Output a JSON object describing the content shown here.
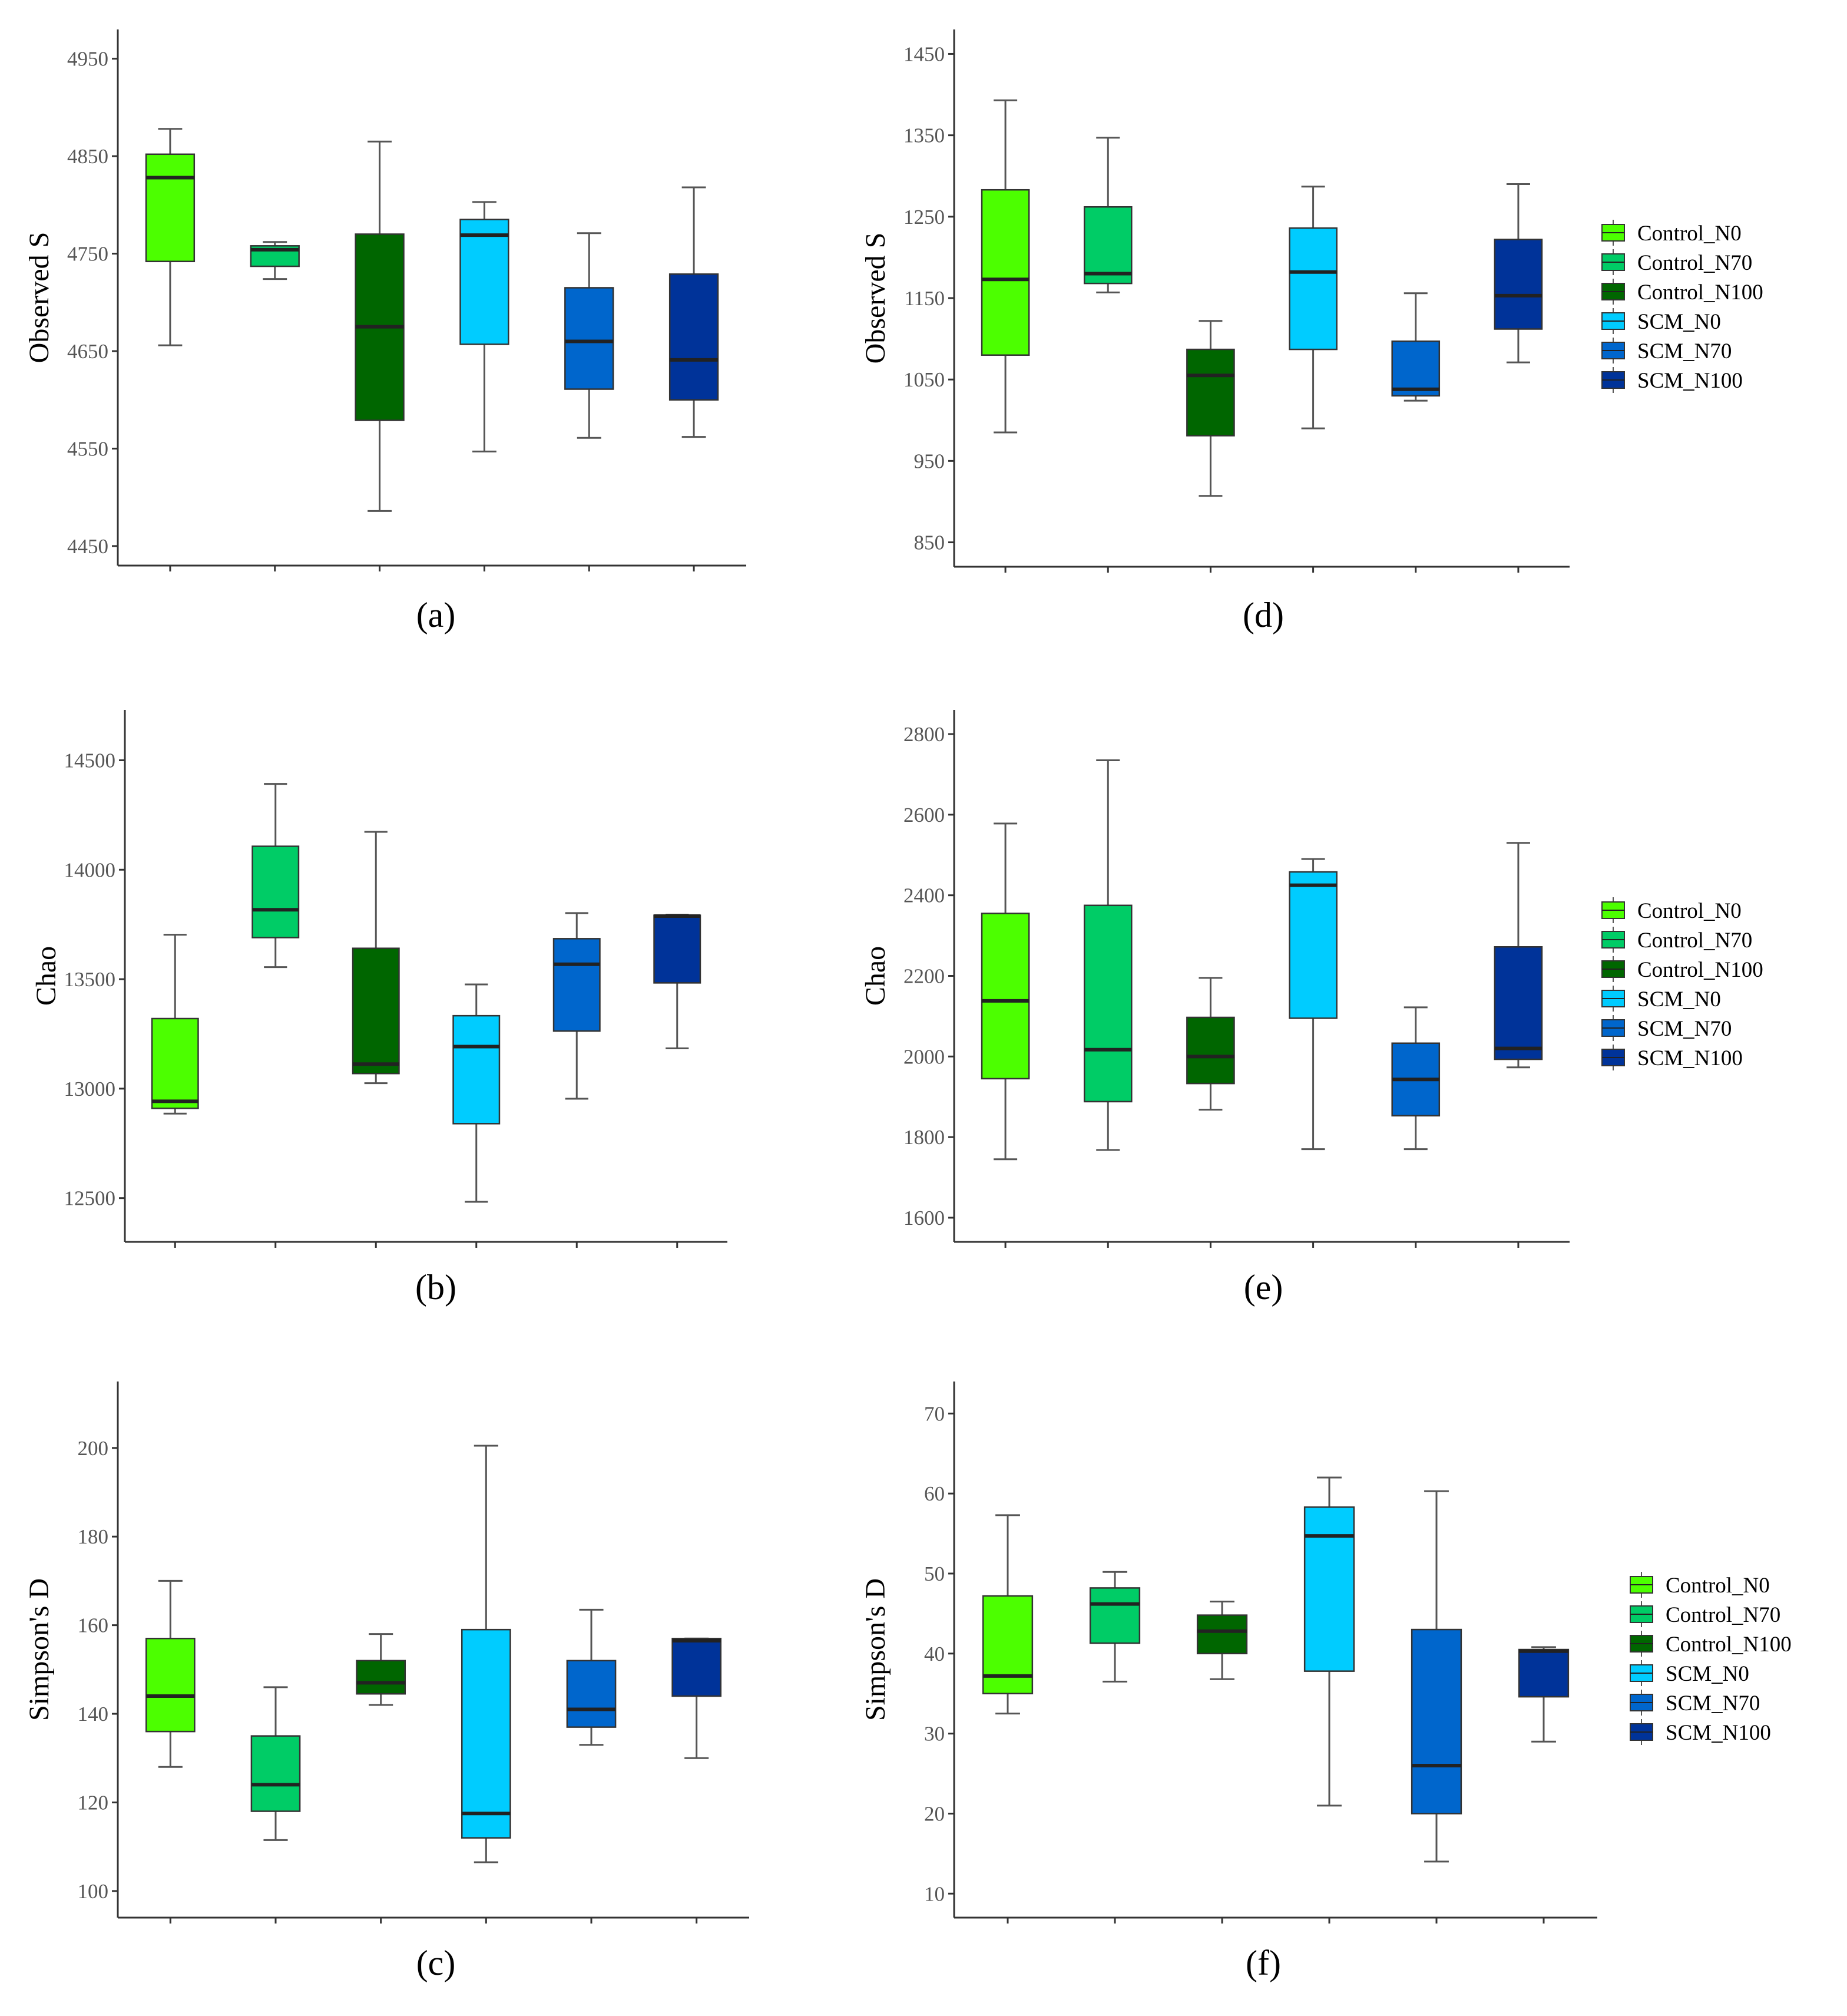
{
  "groups": [
    "Control_N0",
    "Control_N70",
    "Control_N100",
    "SCM_N0",
    "SCM_N70",
    "SCM_N100"
  ],
  "colors": {
    "Control_N0": "#4cff00",
    "Control_N70": "#00cc66",
    "Control_N100": "#006600",
    "SCM_N0": "#00ccff",
    "SCM_N70": "#0066cc",
    "SCM_N100": "#003399"
  },
  "chart_data": [
    {
      "panel": "(a)",
      "type": "box",
      "ylabel": "Observed S",
      "ylim": [
        4430,
        4980
      ],
      "yticks": [
        4450,
        4550,
        4650,
        4750,
        4850,
        4950
      ],
      "legend": false,
      "boxes": [
        {
          "group": "Control_N0",
          "min": 4656,
          "q1": 4742,
          "median": 4828,
          "q3": 4852,
          "max": 4878
        },
        {
          "group": "Control_N70",
          "min": 4724,
          "q1": 4737,
          "median": 4754,
          "q3": 4758,
          "max": 4762
        },
        {
          "group": "Control_N100",
          "min": 4486,
          "q1": 4579,
          "median": 4675,
          "q3": 4770,
          "max": 4865
        },
        {
          "group": "SCM_N0",
          "min": 4547,
          "q1": 4657,
          "median": 4769,
          "q3": 4785,
          "max": 4803
        },
        {
          "group": "SCM_N70",
          "min": 4561,
          "q1": 4611,
          "median": 4660,
          "q3": 4715,
          "max": 4771
        },
        {
          "group": "SCM_N100",
          "min": 4562,
          "q1": 4600,
          "median": 4641,
          "q3": 4729,
          "max": 4818
        }
      ]
    },
    {
      "panel": "(d)",
      "type": "box",
      "ylabel": "Observed S",
      "ylim": [
        820,
        1480
      ],
      "yticks": [
        850,
        950,
        1050,
        1150,
        1250,
        1350,
        1450
      ],
      "legend": true,
      "legend_position": "right",
      "boxes": [
        {
          "group": "Control_N0",
          "min": 985,
          "q1": 1080,
          "median": 1173,
          "q3": 1283,
          "max": 1393
        },
        {
          "group": "Control_N70",
          "min": 1157,
          "q1": 1168,
          "median": 1180,
          "q3": 1262,
          "max": 1347
        },
        {
          "group": "Control_N100",
          "min": 907,
          "q1": 981,
          "median": 1055,
          "q3": 1087,
          "max": 1122
        },
        {
          "group": "SCM_N0",
          "min": 990,
          "q1": 1087,
          "median": 1182,
          "q3": 1236,
          "max": 1287
        },
        {
          "group": "SCM_N70",
          "min": 1024,
          "q1": 1030,
          "median": 1038,
          "q3": 1097,
          "max": 1156
        },
        {
          "group": "SCM_N100",
          "min": 1071,
          "q1": 1112,
          "median": 1153,
          "q3": 1222,
          "max": 1290
        }
      ]
    },
    {
      "panel": "(b)",
      "type": "box",
      "ylabel": "Chao",
      "ylim": [
        12300,
        14730
      ],
      "yticks": [
        12500,
        13000,
        13500,
        14000,
        14500
      ],
      "legend": false,
      "boxes": [
        {
          "group": "Control_N0",
          "min": 12886,
          "q1": 12910,
          "median": 12942,
          "q3": 13320,
          "max": 13703
        },
        {
          "group": "Control_N70",
          "min": 13555,
          "q1": 13690,
          "median": 13817,
          "q3": 14107,
          "max": 14392
        },
        {
          "group": "Control_N100",
          "min": 13025,
          "q1": 13069,
          "median": 13112,
          "q3": 13641,
          "max": 14173
        },
        {
          "group": "SCM_N0",
          "min": 12483,
          "q1": 12840,
          "median": 13192,
          "q3": 13333,
          "max": 13476
        },
        {
          "group": "SCM_N70",
          "min": 12954,
          "q1": 13263,
          "median": 13568,
          "q3": 13685,
          "max": 13802
        },
        {
          "group": "SCM_N100",
          "min": 13184,
          "q1": 13483,
          "median": 13788,
          "q3": 13792,
          "max": 13795
        }
      ]
    },
    {
      "panel": "(e)",
      "type": "box",
      "ylabel": "Chao",
      "ylim": [
        1540,
        2860
      ],
      "yticks": [
        1600,
        1800,
        2000,
        2200,
        2400,
        2600,
        2800
      ],
      "legend": true,
      "legend_position": "right",
      "boxes": [
        {
          "group": "Control_N0",
          "min": 1745,
          "q1": 1945,
          "median": 2138,
          "q3": 2355,
          "max": 2578
        },
        {
          "group": "Control_N70",
          "min": 1768,
          "q1": 1888,
          "median": 2017,
          "q3": 2375,
          "max": 2735
        },
        {
          "group": "Control_N100",
          "min": 1868,
          "q1": 1933,
          "median": 2000,
          "q3": 2097,
          "max": 2195
        },
        {
          "group": "SCM_N0",
          "min": 1770,
          "q1": 2095,
          "median": 2425,
          "q3": 2458,
          "max": 2490
        },
        {
          "group": "SCM_N70",
          "min": 1770,
          "q1": 1853,
          "median": 1943,
          "q3": 2033,
          "max": 2122
        },
        {
          "group": "SCM_N100",
          "min": 1973,
          "q1": 1993,
          "median": 2020,
          "q3": 2272,
          "max": 2530
        }
      ]
    },
    {
      "panel": "(c)",
      "type": "box",
      "ylabel": "Simpson's D",
      "ylim": [
        94,
        215
      ],
      "yticks": [
        100,
        120,
        140,
        160,
        180,
        200
      ],
      "legend": false,
      "boxes": [
        {
          "group": "Control_N0",
          "min": 128,
          "q1": 136,
          "median": 144,
          "q3": 157,
          "max": 170
        },
        {
          "group": "Control_N70",
          "min": 111.5,
          "q1": 118,
          "median": 124,
          "q3": 135,
          "max": 146
        },
        {
          "group": "Control_N100",
          "min": 142,
          "q1": 144.5,
          "median": 147,
          "q3": 152,
          "max": 158
        },
        {
          "group": "SCM_N0",
          "min": 106.5,
          "q1": 112,
          "median": 117.5,
          "q3": 159,
          "max": 200.5
        },
        {
          "group": "SCM_N70",
          "min": 133,
          "q1": 137,
          "median": 141,
          "q3": 152,
          "max": 163.5
        },
        {
          "group": "SCM_N100",
          "min": 130,
          "q1": 144,
          "median": 156.5,
          "q3": 157,
          "max": 157
        }
      ]
    },
    {
      "panel": "(f)",
      "type": "box",
      "ylabel": "Simpson's D",
      "ylim": [
        7,
        74
      ],
      "yticks": [
        10,
        20,
        30,
        40,
        50,
        60,
        70
      ],
      "legend": true,
      "legend_position": "right",
      "boxes": [
        {
          "group": "Control_N0",
          "min": 32.5,
          "q1": 35,
          "median": 37.2,
          "q3": 47.2,
          "max": 57.3
        },
        {
          "group": "Control_N70",
          "min": 36.5,
          "q1": 41.3,
          "median": 46.2,
          "q3": 48.2,
          "max": 50.2
        },
        {
          "group": "Control_N100",
          "min": 36.8,
          "q1": 40,
          "median": 42.8,
          "q3": 44.8,
          "max": 46.5
        },
        {
          "group": "SCM_N0",
          "min": 21,
          "q1": 37.8,
          "median": 54.7,
          "q3": 58.3,
          "max": 62
        },
        {
          "group": "SCM_N70",
          "min": 14,
          "q1": 20,
          "median": 26,
          "q3": 43,
          "max": 60.3
        },
        {
          "group": "SCM_N100",
          "min": 29,
          "q1": 34.6,
          "median": 40.3,
          "q3": 40.5,
          "max": 40.8
        }
      ]
    }
  ]
}
